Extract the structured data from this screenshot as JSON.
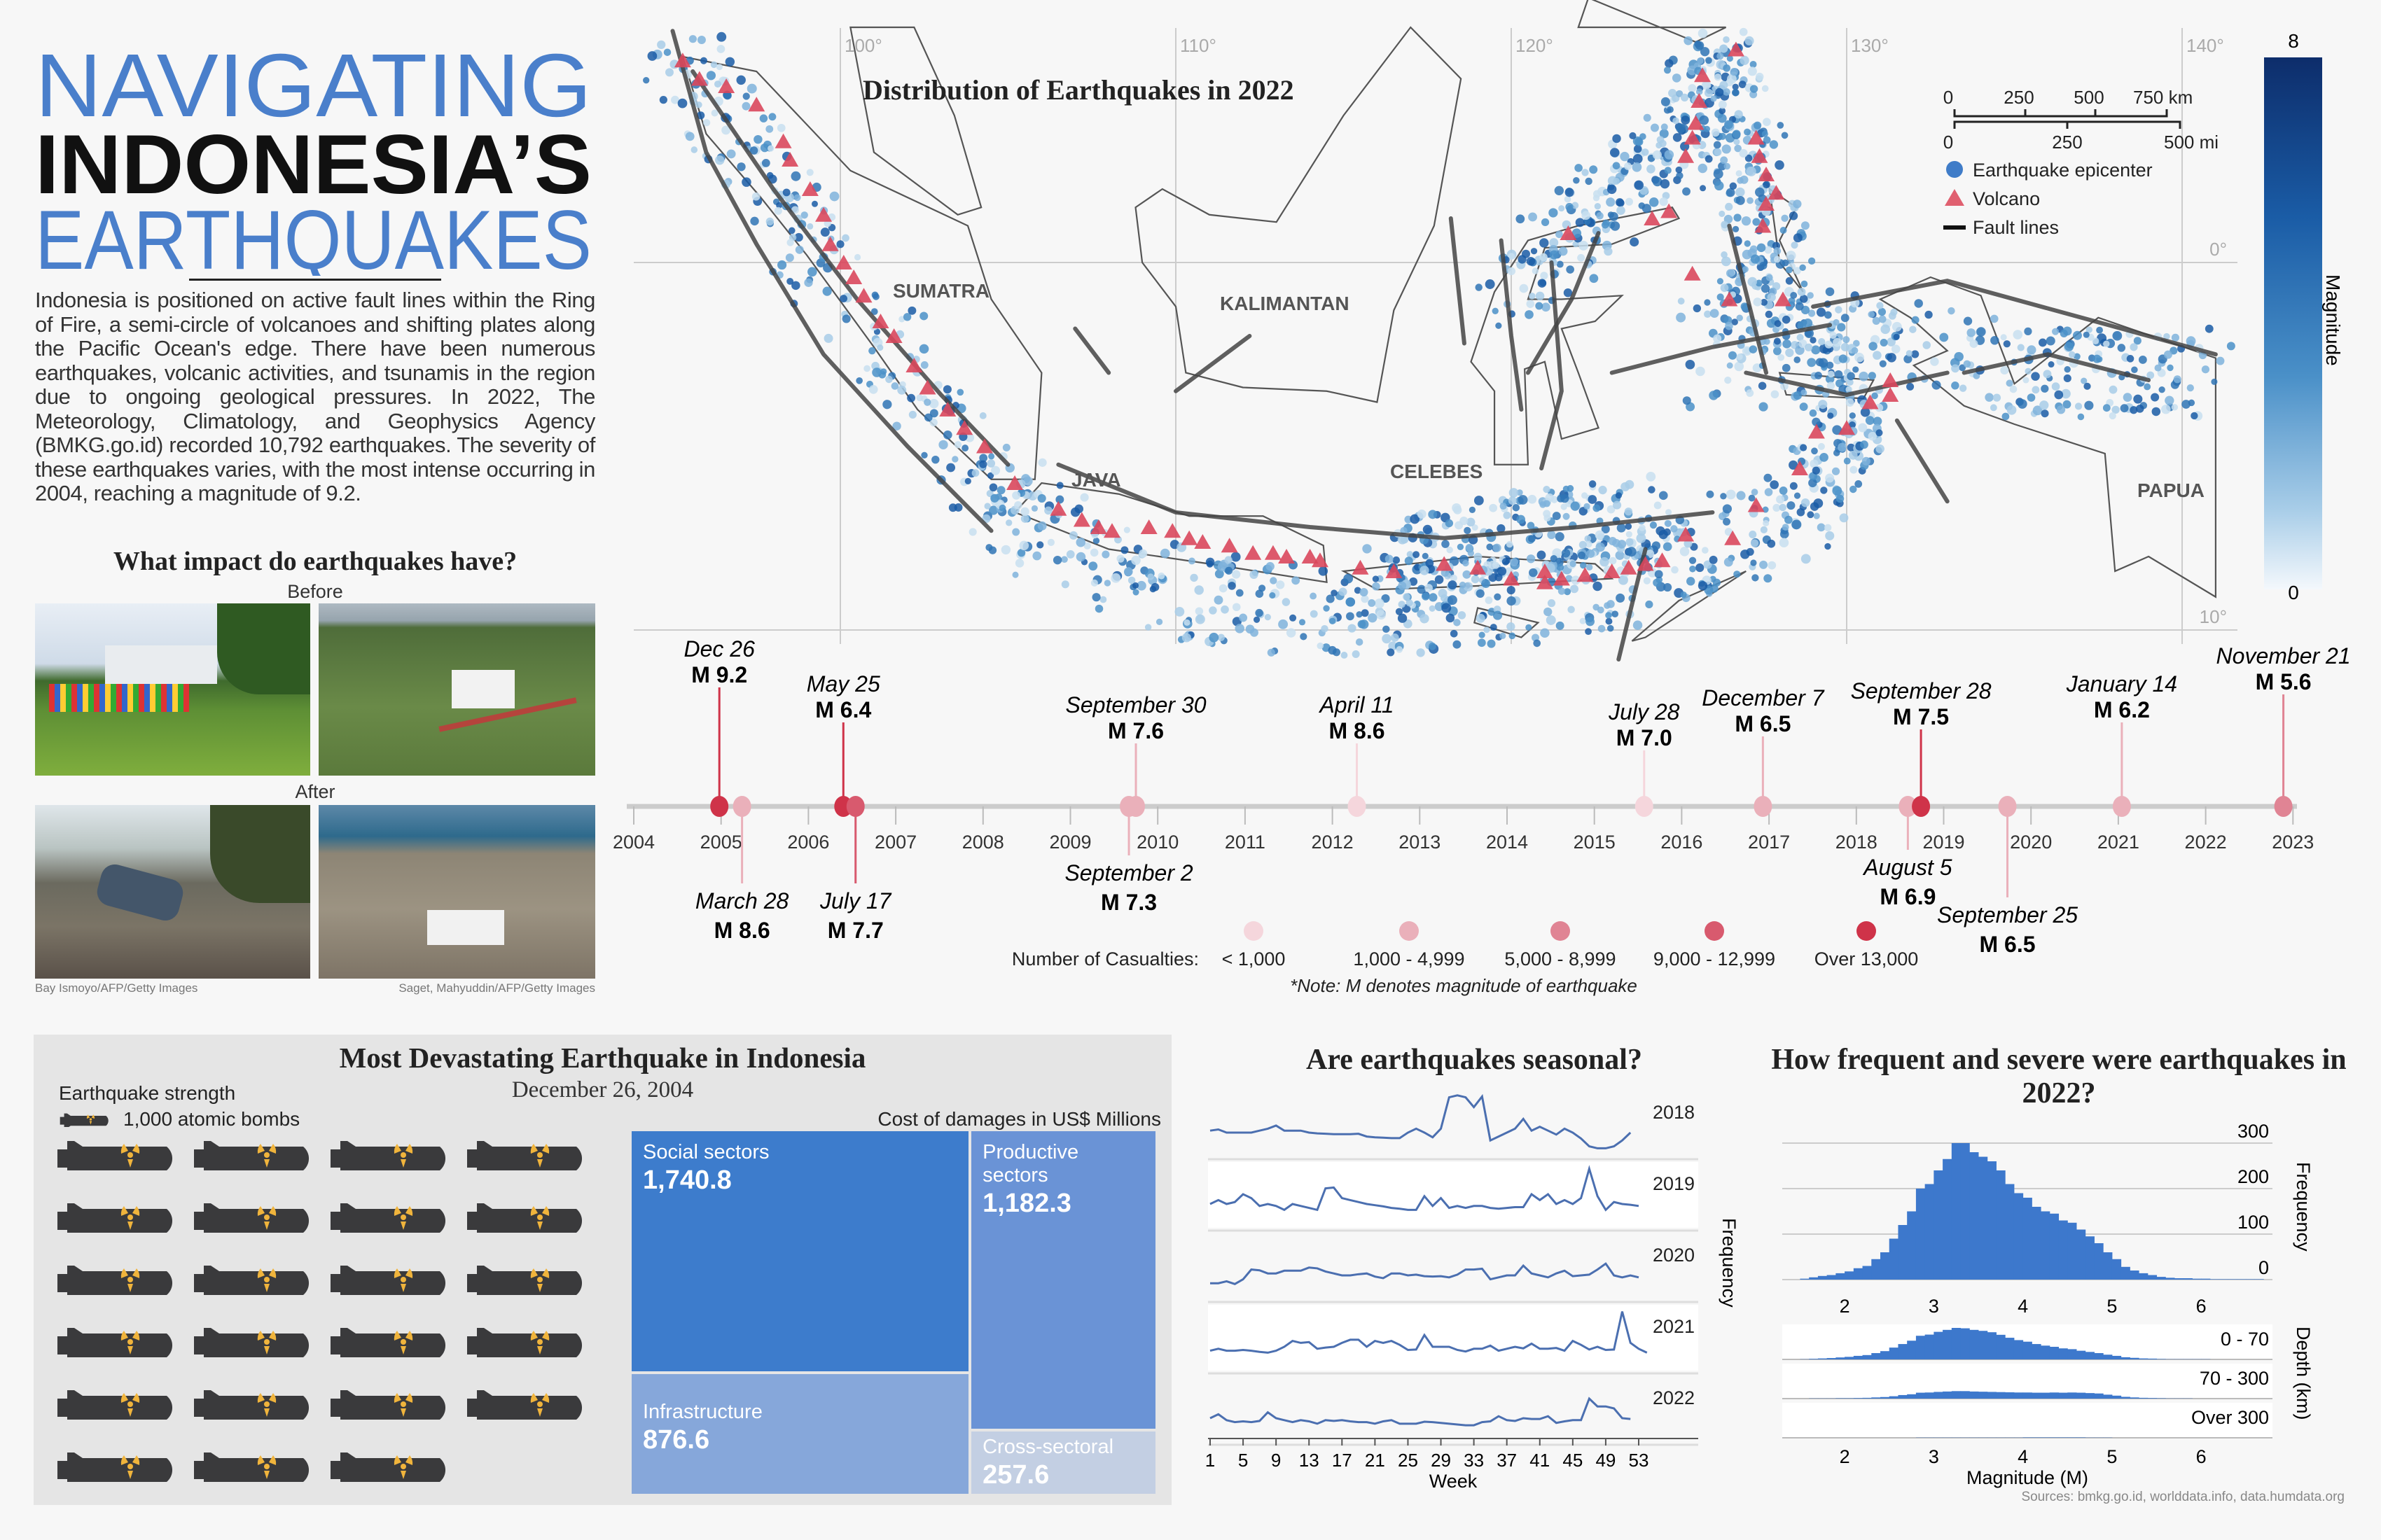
{
  "title": {
    "line1": "NAVIGATING",
    "line2": "INDONESIA’S",
    "line3": "EARTHQUAKES"
  },
  "intro": "Indonesia is positioned on active fault lines within the Ring of Fire, a semi-circle of volcanoes and shifting plates along the Pacific Ocean's edge. There have been numerous earthquakes, volcanic activities, and tsunamis in the region due to ongoing geological pressures. In 2022, The Meteorology, Climatology, and Geophysics Agency (BMKG.go.id) recorded 10,792 earthquakes. The severity of these earthquakes varies, with the most intense occurring in 2004, reaching a magnitude of 9.2.",
  "impact": {
    "heading": "What impact do earthquakes have?",
    "before": "Before",
    "after": "After",
    "credit_left": "Bay Ismoyo/AFP/Getty Images",
    "credit_right": "Saget, Mahyuddin/AFP/Getty Images"
  },
  "map": {
    "title": "Distribution of Earthquakes in 2022",
    "lon_labels": [
      "100°",
      "110°",
      "120°",
      "130°",
      "140°"
    ],
    "lat_labels": [
      "0°",
      "10°"
    ],
    "regions": [
      "SUMATRA",
      "KALIMANTAN",
      "JAVA",
      "CELEBES",
      "PAPUA"
    ],
    "scale_km": [
      "0",
      "250",
      "500",
      "750 km"
    ],
    "scale_mi": [
      "0",
      "250",
      "500 mi"
    ],
    "legend": {
      "epicenter": "Earthquake epicenter",
      "volcano": "Volcano",
      "fault": "Fault lines"
    },
    "colorbar": {
      "label": "Magnitude",
      "max": "8",
      "min": "0",
      "colors": [
        "#0d2d6b",
        "#1a5ca6",
        "#4a90c8",
        "#a8cde8",
        "#f4f8fc"
      ]
    },
    "colors": {
      "volcano": "#d9475c",
      "fault": "#444444",
      "epicenter": "#2f7bbf"
    },
    "volcanoes": [
      [
        95.3,
        5.5
      ],
      [
        95.8,
        5.0
      ],
      [
        96.6,
        4.8
      ],
      [
        97.5,
        4.3
      ],
      [
        98.3,
        3.3
      ],
      [
        98.5,
        2.8
      ],
      [
        99.1,
        2.0
      ],
      [
        99.5,
        1.3
      ],
      [
        99.7,
        0.5
      ],
      [
        100.1,
        0.0
      ],
      [
        100.4,
        -0.4
      ],
      [
        100.7,
        -0.9
      ],
      [
        101.2,
        -1.6
      ],
      [
        101.6,
        -2.0
      ],
      [
        102.2,
        -2.8
      ],
      [
        102.6,
        -3.4
      ],
      [
        103.2,
        -4.0
      ],
      [
        103.7,
        -4.5
      ],
      [
        104.3,
        -5.0
      ],
      [
        105.2,
        -6.0
      ],
      [
        106.5,
        -6.7
      ],
      [
        107.2,
        -7.0
      ],
      [
        107.7,
        -7.2
      ],
      [
        108.1,
        -7.3
      ],
      [
        109.2,
        -7.2
      ],
      [
        109.9,
        -7.3
      ],
      [
        110.4,
        -7.5
      ],
      [
        110.8,
        -7.6
      ],
      [
        111.6,
        -7.7
      ],
      [
        112.3,
        -7.9
      ],
      [
        112.9,
        -7.9
      ],
      [
        113.3,
        -8.0
      ],
      [
        114.0,
        -8.0
      ],
      [
        114.3,
        -8.1
      ],
      [
        115.5,
        -8.3
      ],
      [
        116.5,
        -8.4
      ],
      [
        118.0,
        -8.2
      ],
      [
        119.0,
        -8.3
      ],
      [
        120.0,
        -8.6
      ],
      [
        121.0,
        -8.7
      ],
      [
        121.5,
        -8.6
      ],
      [
        122.2,
        -8.5
      ],
      [
        123.0,
        -8.4
      ],
      [
        123.5,
        -8.3
      ],
      [
        124.0,
        -8.2
      ],
      [
        124.5,
        -8.1
      ],
      [
        125.2,
        -7.4
      ],
      [
        126.6,
        -7.5
      ],
      [
        127.3,
        -6.6
      ],
      [
        128.6,
        -5.6
      ],
      [
        129.1,
        -4.6
      ],
      [
        130.0,
        -4.5
      ],
      [
        130.7,
        -3.8
      ],
      [
        131.3,
        -3.6
      ],
      [
        131.3,
        -3.2
      ],
      [
        126.5,
        -1.0
      ],
      [
        128.1,
        -1.0
      ],
      [
        127.5,
        1.0
      ],
      [
        127.6,
        1.6
      ],
      [
        127.9,
        1.9
      ],
      [
        127.6,
        2.4
      ],
      [
        127.4,
        2.9
      ],
      [
        127.3,
        3.4
      ],
      [
        126.7,
        5.8
      ],
      [
        125.7,
        5.1
      ],
      [
        125.6,
        4.4
      ],
      [
        125.5,
        3.8
      ],
      [
        125.4,
        3.4
      ],
      [
        125.2,
        2.9
      ],
      [
        124.7,
        1.4
      ],
      [
        124.2,
        1.2
      ],
      [
        125.4,
        -0.3
      ],
      [
        121.7,
        0.8
      ],
      [
        121.0,
        -8.4
      ]
    ]
  },
  "timeline": {
    "axis_years": [
      "2004",
      "2005",
      "2006",
      "2007",
      "2008",
      "2009",
      "2010",
      "2011",
      "2012",
      "2013",
      "2014",
      "2015",
      "2016",
      "2017",
      "2018",
      "2019",
      "2020",
      "2021",
      "2022",
      "2023"
    ],
    "events": [
      {
        "date": "Dec 26",
        "year": 2004,
        "frac": 0.98,
        "mag": "M 9.2",
        "cat": 4
      },
      {
        "date": "March 28",
        "year": 2005,
        "frac": 0.24,
        "mag": "M 8.6",
        "cat": 1
      },
      {
        "date": "May 25",
        "year": 2006,
        "frac": 0.4,
        "mag": "M 6.4",
        "cat": 4
      },
      {
        "date": "July 17",
        "year": 2006,
        "frac": 0.54,
        "mag": "M 7.7",
        "cat": 3
      },
      {
        "date": "September 2",
        "year": 2009,
        "frac": 0.67,
        "mag": "M 7.3",
        "cat": 1
      },
      {
        "date": "September 30",
        "year": 2009,
        "frac": 0.75,
        "mag": "M 7.6",
        "cat": 1
      },
      {
        "date": "April 11",
        "year": 2012,
        "frac": 0.28,
        "mag": "M 8.6",
        "cat": 0
      },
      {
        "date": "July 28",
        "year": 2015,
        "frac": 0.57,
        "mag": "M 7.0",
        "cat": 0
      },
      {
        "date": "December 7",
        "year": 2016,
        "frac": 0.93,
        "mag": "M 6.5",
        "cat": 1
      },
      {
        "date": "August 5",
        "year": 2018,
        "frac": 0.59,
        "mag": "M 6.9",
        "cat": 1
      },
      {
        "date": "September 28",
        "year": 2018,
        "frac": 0.74,
        "mag": "M 7.5",
        "cat": 4
      },
      {
        "date": "September 25",
        "year": 2019,
        "frac": 0.73,
        "mag": "M 6.5",
        "cat": 1
      },
      {
        "date": "January 14",
        "year": 2021,
        "frac": 0.04,
        "mag": "M 6.2",
        "cat": 1
      },
      {
        "date": "November 21",
        "year": 2022,
        "frac": 0.89,
        "mag": "M 5.6",
        "cat": 2
      }
    ],
    "legend_title": "Number of Casualties:",
    "categories": [
      "< 1,000",
      "1,000 - 4,999",
      "5,000 - 8,999",
      "9,000 - 12,999",
      "Over 13,000"
    ],
    "category_colors": [
      "#f5d6dc",
      "#eab0ba",
      "#e08494",
      "#d85a6e",
      "#cf3349"
    ],
    "note": "*Note: M denotes magnitude of earthquake"
  },
  "devastating": {
    "title": "Most Devastating Earthquake in Indonesia",
    "date": "December 26, 2004",
    "strength_label": "Earthquake strength",
    "unit_label": "1,000 atomic bombs",
    "bomb_count": 23,
    "cost_label": "Cost of damages in US$ Millions",
    "sectors": [
      {
        "name": "Social sectors",
        "value": "1,740.8",
        "num": 1740.8,
        "color": "#3d7ccc"
      },
      {
        "name": "Infrastructure",
        "value": "876.6",
        "num": 876.6,
        "color": "#86a7da"
      },
      {
        "name": "Productive sectors",
        "value": "1,182.3",
        "num": 1182.3,
        "color": "#6a93d6"
      },
      {
        "name": "Cross-sectoral",
        "value": "257.6",
        "num": 257.6,
        "color": "#c3cfe3"
      }
    ]
  },
  "chart_data": [
    {
      "type": "line",
      "title": "Are earthquakes seasonal?",
      "xlabel": "Week",
      "ylabel": "Frequency",
      "x_ticks": [
        "1",
        "5",
        "9",
        "13",
        "17",
        "21",
        "25",
        "29",
        "33",
        "37",
        "41",
        "45",
        "49",
        "53"
      ],
      "series": [
        {
          "name": "2018",
          "values": [
            205,
            208,
            200,
            200,
            200,
            200,
            205,
            210,
            218,
            205,
            205,
            205,
            200,
            198,
            197,
            196,
            196,
            196,
            197,
            190,
            188,
            187,
            186,
            186,
            200,
            210,
            200,
            188,
            210,
            290,
            295,
            290,
            265,
            292,
            180,
            190,
            200,
            210,
            235,
            205,
            215,
            205,
            195,
            210,
            200,
            185,
            165,
            160,
            160,
            165,
            180,
            200
          ]
        },
        {
          "name": "2019",
          "values": [
            200,
            210,
            200,
            205,
            225,
            215,
            195,
            200,
            195,
            185,
            200,
            195,
            190,
            185,
            240,
            242,
            215,
            210,
            205,
            200,
            197,
            194,
            190,
            188,
            185,
            185,
            220,
            195,
            215,
            190,
            195,
            190,
            195,
            195,
            190,
            188,
            190,
            192,
            192,
            225,
            210,
            225,
            200,
            210,
            200,
            215,
            290,
            220,
            185,
            205,
            200,
            198,
            195
          ]
        },
        {
          "name": "2020",
          "values": [
            180,
            180,
            185,
            178,
            190,
            215,
            213,
            205,
            205,
            212,
            212,
            212,
            220,
            218,
            210,
            205,
            200,
            200,
            203,
            205,
            197,
            193,
            205,
            205,
            200,
            202,
            198,
            197,
            198,
            195,
            202,
            215,
            215,
            217,
            190,
            195,
            200,
            200,
            225,
            205,
            200,
            195,
            205,
            212,
            198,
            200,
            202,
            215,
            230,
            200,
            195,
            200,
            195
          ]
        },
        {
          "name": "2021",
          "values": [
            190,
            195,
            190,
            190,
            192,
            190,
            187,
            185,
            190,
            200,
            215,
            210,
            212,
            195,
            198,
            200,
            210,
            218,
            218,
            200,
            215,
            210,
            215,
            205,
            192,
            193,
            230,
            200,
            200,
            200,
            192,
            188,
            195,
            195,
            203,
            190,
            195,
            200,
            196,
            208,
            195,
            195,
            197,
            190,
            215,
            205,
            193,
            200,
            192,
            193,
            290,
            210,
            195,
            185
          ]
        },
        {
          "name": "2022",
          "values": [
            200,
            210,
            195,
            190,
            192,
            190,
            193,
            215,
            200,
            195,
            190,
            195,
            192,
            186,
            195,
            193,
            195,
            192,
            190,
            190,
            186,
            192,
            195,
            186,
            186,
            186,
            191,
            190,
            188,
            186,
            184,
            182,
            182,
            190,
            192,
            205,
            195,
            193,
            200,
            198,
            198,
            205,
            188,
            192,
            195,
            195,
            250,
            230,
            230,
            225,
            200,
            198
          ]
        }
      ]
    },
    {
      "type": "bar",
      "title": "How frequent and severe were earthquakes in 2022?",
      "xlabel": "Magnitude (M)",
      "ylabel": "Frequency",
      "x_ticks": [
        "2",
        "3",
        "4",
        "5",
        "6"
      ],
      "y_ticks": [
        "0",
        "100",
        "200",
        "300"
      ],
      "bin_start": 1.5,
      "bin_width": 0.1,
      "values": [
        2,
        5,
        8,
        10,
        14,
        18,
        25,
        30,
        45,
        60,
        90,
        120,
        150,
        200,
        210,
        240,
        265,
        300,
        300,
        280,
        270,
        260,
        240,
        210,
        190,
        180,
        160,
        150,
        145,
        130,
        125,
        110,
        95,
        80,
        60,
        45,
        28,
        20,
        14,
        10,
        6,
        4,
        3,
        3,
        2,
        2,
        1,
        1,
        1,
        1,
        1,
        1
      ],
      "depth_label": "Depth (km)",
      "depth_series": [
        {
          "name": "0 - 70",
          "values": [
            1,
            3,
            5,
            7,
            10,
            13,
            18,
            22,
            32,
            42,
            60,
            78,
            95,
            120,
            126,
            140,
            150,
            160,
            158,
            150,
            145,
            138,
            125,
            110,
            98,
            90,
            78,
            70,
            64,
            56,
            52,
            44,
            38,
            32,
            24,
            18,
            11,
            8,
            5,
            4,
            2,
            1,
            1,
            1,
            1,
            1,
            0,
            0,
            0,
            0,
            0,
            0
          ]
        },
        {
          "name": "70 - 300",
          "values": [
            0,
            1,
            1,
            1,
            2,
            2,
            3,
            4,
            6,
            8,
            12,
            18,
            22,
            30,
            31,
            34,
            36,
            38,
            38,
            36,
            35,
            34,
            33,
            32,
            31,
            31,
            30,
            30,
            31,
            30,
            31,
            30,
            28,
            26,
            20,
            15,
            9,
            6,
            4,
            3,
            2,
            1,
            1,
            1,
            0,
            0,
            0,
            0,
            0,
            0,
            0,
            0
          ]
        },
        {
          "name": "Over 300",
          "values": [
            0,
            0,
            0,
            0,
            0,
            0,
            0,
            0,
            0,
            0,
            0,
            0,
            0,
            1,
            1,
            1,
            1,
            1,
            1,
            1,
            1,
            1,
            1,
            1,
            1,
            2,
            2,
            2,
            2,
            2,
            2,
            2,
            1,
            1,
            1,
            0,
            0,
            0,
            0,
            0,
            0,
            0,
            0,
            0,
            0,
            0,
            0,
            0,
            0,
            0,
            0,
            0
          ]
        }
      ],
      "color": "#3d78cc"
    }
  ],
  "sources": "Sources: bmkg.go.id, worlddata.info, data.humdata.org"
}
